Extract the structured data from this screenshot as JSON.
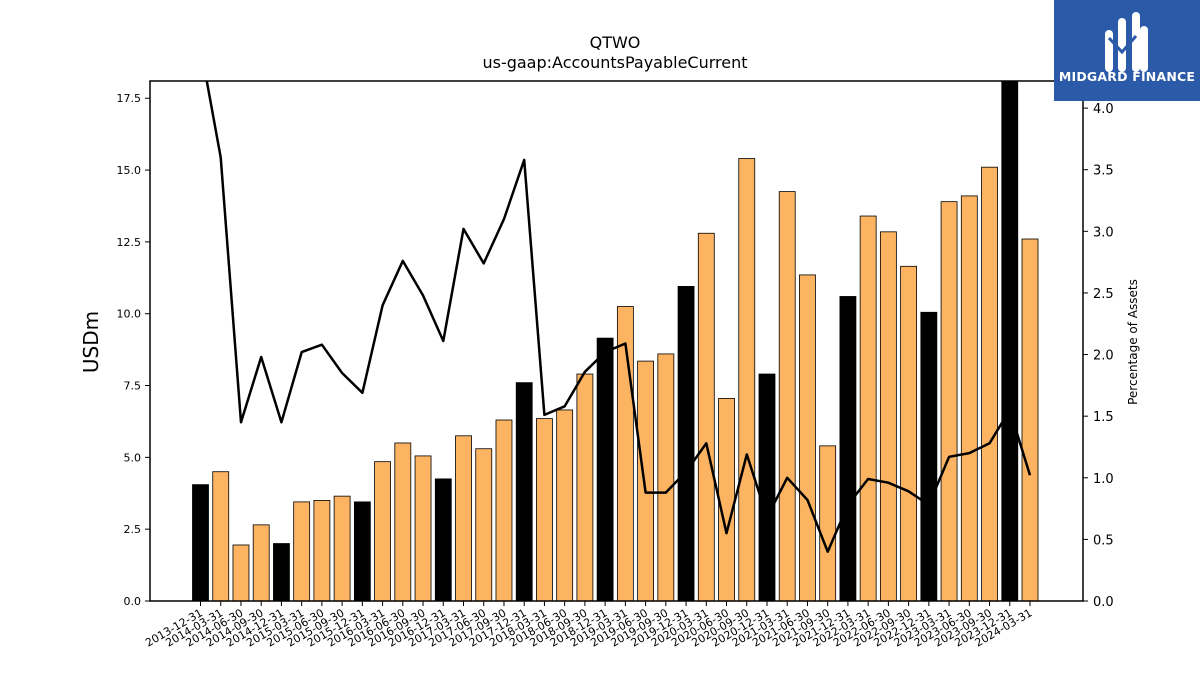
{
  "logo": {
    "text": "MIDGARD FINANCE"
  },
  "chart_data": {
    "type": "bar",
    "title": "QTWO",
    "subtitle": "us-gaap:AccountsPayableCurrent",
    "ylabel": "USDm",
    "y2label": "Percentage of Assets",
    "ylim": [
      0,
      18.1
    ],
    "y2lim": [
      0,
      4.22
    ],
    "yticks": [
      "0.0",
      "2.5",
      "5.0",
      "7.5",
      "10.0",
      "12.5",
      "15.0",
      "17.5"
    ],
    "y2ticks": [
      "0.0",
      "0.5",
      "1.0",
      "1.5",
      "2.0",
      "2.5",
      "3.0",
      "3.5",
      "4.0"
    ],
    "categories": [
      "2013-12-31",
      "2014-03-31",
      "2014-06-30",
      "2014-09-30",
      "2014-12-31",
      "2015-03-31",
      "2015-06-30",
      "2015-09-30",
      "2015-12-31",
      "2016-03-31",
      "2016-06-30",
      "2016-09-30",
      "2016-12-31",
      "2017-03-31",
      "2017-06-30",
      "2017-09-30",
      "2017-12-31",
      "2018-03-31",
      "2018-06-30",
      "2018-09-30",
      "2018-12-31",
      "2019-03-31",
      "2019-06-30",
      "2019-09-30",
      "2019-12-31",
      "2020-03-31",
      "2020-06-30",
      "2020-09-30",
      "2020-12-31",
      "2021-03-31",
      "2021-06-30",
      "2021-09-30",
      "2021-12-31",
      "2022-03-31",
      "2022-06-30",
      "2022-09-30",
      "2022-12-31",
      "2023-03-31",
      "2023-06-30",
      "2023-09-30",
      "2023-12-31",
      "2024-03-31"
    ],
    "series": [
      {
        "type": "bar",
        "values": [
          4.05,
          4.5,
          1.95,
          2.65,
          2.0,
          3.45,
          3.5,
          3.65,
          3.45,
          4.85,
          5.5,
          5.05,
          4.25,
          5.75,
          5.3,
          6.3,
          7.6,
          6.35,
          6.65,
          7.9,
          9.15,
          10.25,
          8.35,
          8.6,
          10.95,
          12.8,
          7.05,
          15.4,
          7.9,
          14.25,
          11.35,
          5.4,
          10.6,
          13.4,
          12.85,
          11.65,
          10.05,
          13.9,
          14.1,
          15.1,
          18.1,
          12.6
        ],
        "highlight_color": "#000000",
        "color": "#fdb462",
        "highlight_categories": [
          "2013-12-31",
          "2014-12-31",
          "2015-12-31",
          "2016-12-31",
          "2017-12-31",
          "2018-12-31",
          "2019-12-31",
          "2020-12-31",
          "2021-12-31",
          "2022-12-31",
          "2023-12-31"
        ]
      },
      {
        "type": "line",
        "axis": "right",
        "color": "#000000",
        "values": [
          4.5,
          3.6,
          1.45,
          1.98,
          1.45,
          2.02,
          2.08,
          1.85,
          1.69,
          2.4,
          2.76,
          2.48,
          2.11,
          3.02,
          2.74,
          3.1,
          3.58,
          1.51,
          1.58,
          1.86,
          2.02,
          2.09,
          0.88,
          0.88,
          1.05,
          1.28,
          0.55,
          1.19,
          0.68,
          1.0,
          0.82,
          0.4,
          0.78,
          0.99,
          0.96,
          0.89,
          0.78,
          1.17,
          1.2,
          1.28,
          1.55,
          1.02
        ]
      }
    ]
  }
}
